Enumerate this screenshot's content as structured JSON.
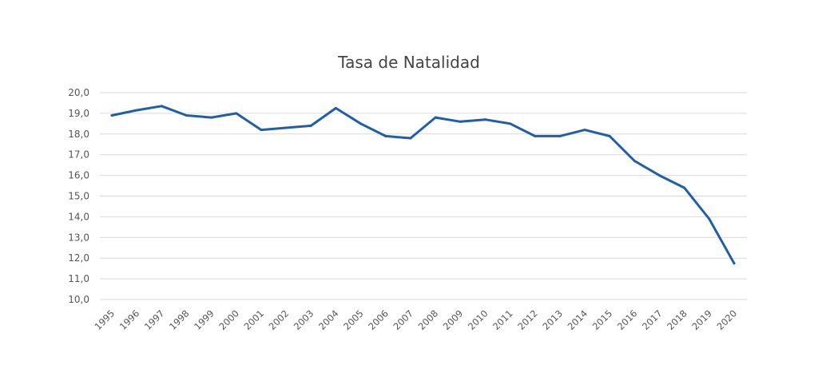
{
  "chart_data": {
    "type": "line",
    "title": "Tasa de Natalidad",
    "xlabel": "",
    "ylabel": "",
    "categories": [
      "1995",
      "1996",
      "1997",
      "1998",
      "1999",
      "2000",
      "2001",
      "2002",
      "2003",
      "2004",
      "2005",
      "2006",
      "2007",
      "2008",
      "2009",
      "2010",
      "2011",
      "2012",
      "2013",
      "2014",
      "2015",
      "2016",
      "2017",
      "2018",
      "2019",
      "2020"
    ],
    "series": [
      {
        "values": [
          18.9,
          19.15,
          19.35,
          18.9,
          18.8,
          19.0,
          18.2,
          18.3,
          18.4,
          19.25,
          18.5,
          17.9,
          17.8,
          18.8,
          18.6,
          18.7,
          18.5,
          17.9,
          17.9,
          18.2,
          17.9,
          16.7,
          16.0,
          15.4,
          13.9,
          11.75
        ]
      }
    ],
    "ylim": [
      10,
      20
    ],
    "yticks": [
      "10,0",
      "11,0",
      "12,0",
      "13,0",
      "14,0",
      "15,0",
      "16,0",
      "17,0",
      "18,0",
      "19,0",
      "20,0"
    ],
    "grid": true,
    "line_color": "#1f5fa8",
    "grid_color": "#d9d9d9"
  }
}
